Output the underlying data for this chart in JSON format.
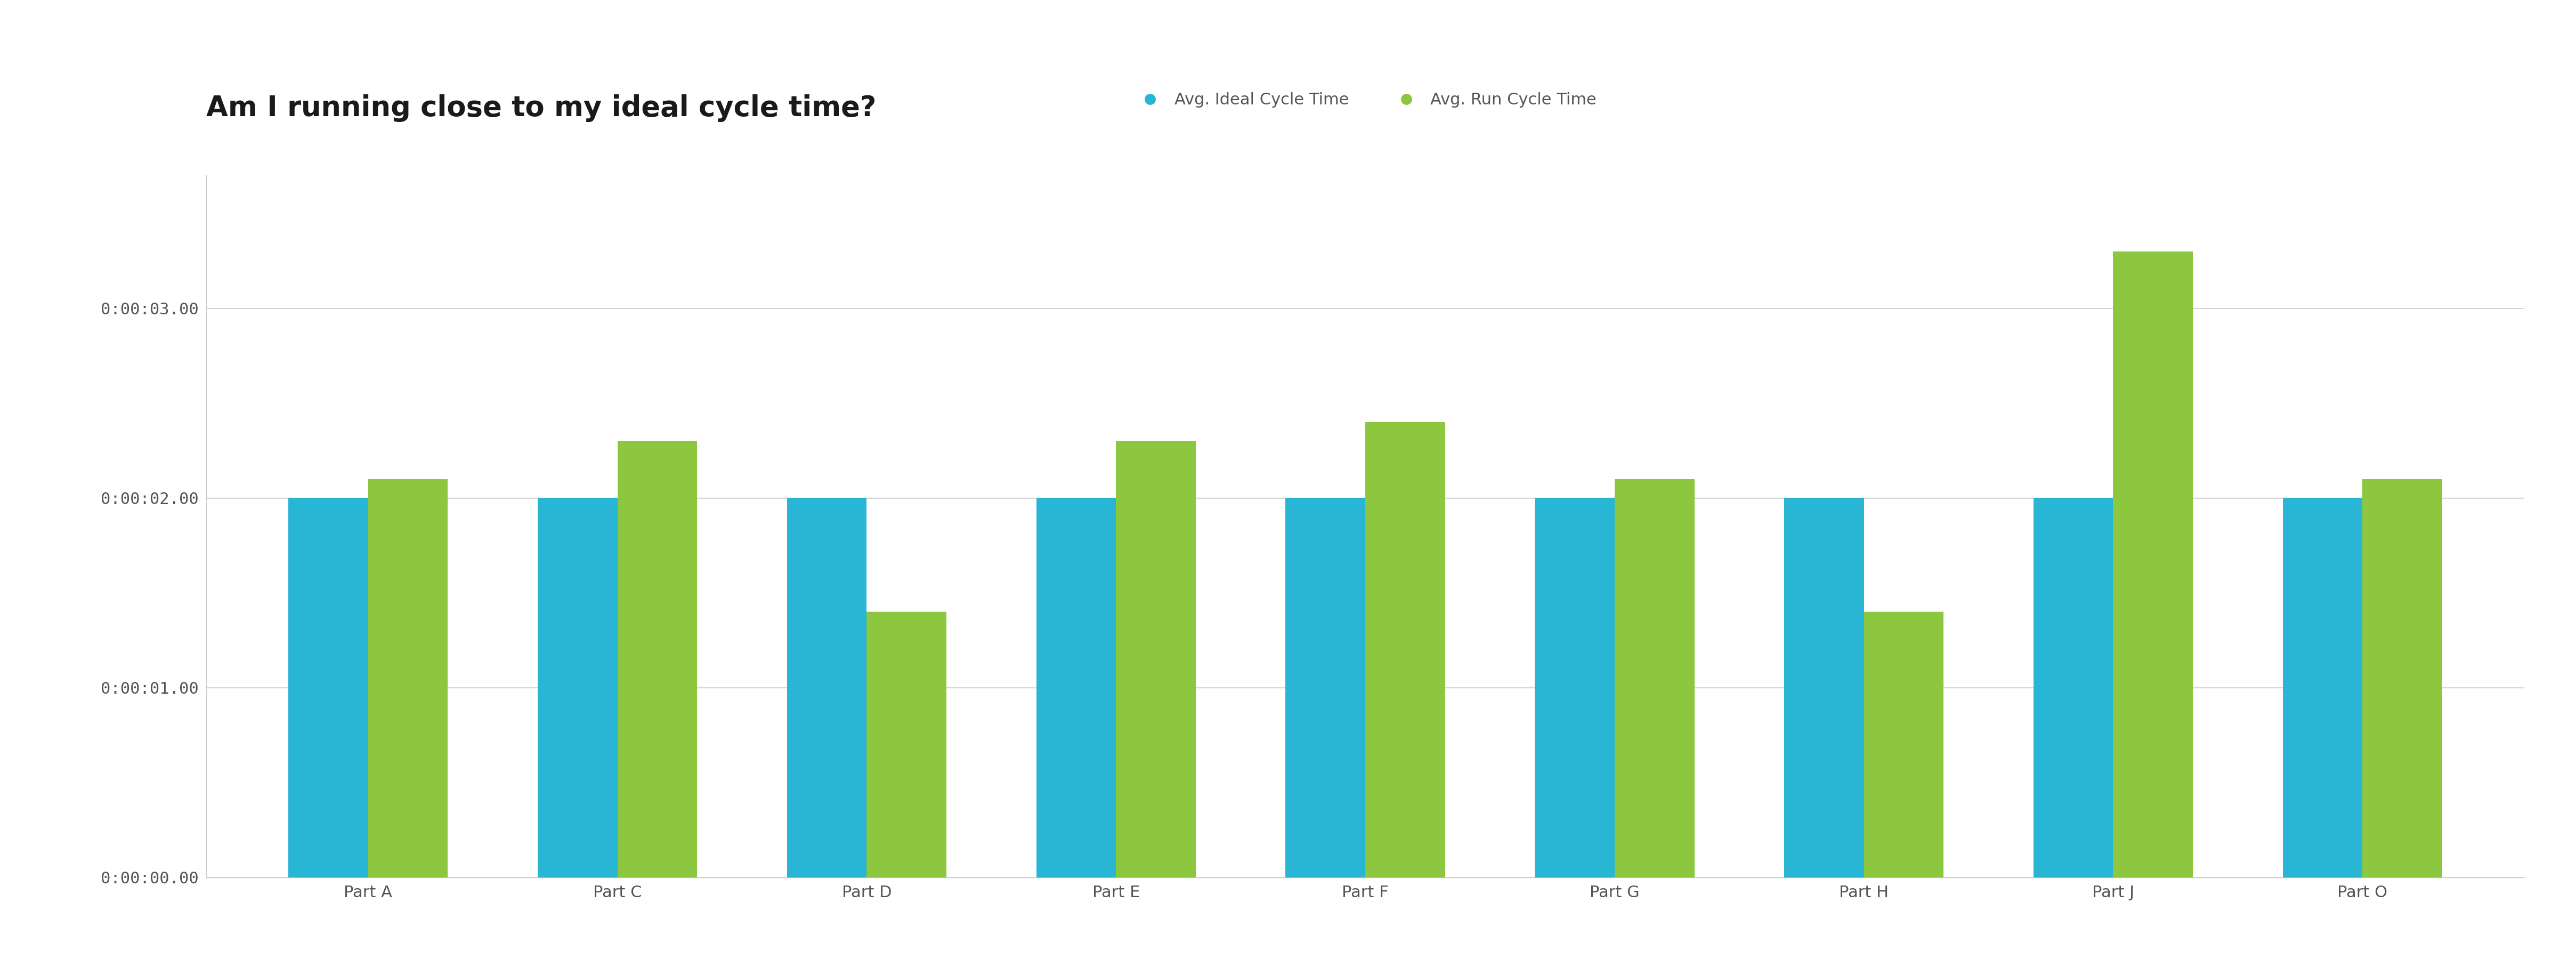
{
  "title": "Am I running close to my ideal cycle time?",
  "categories": [
    "Part A",
    "Part C",
    "Part D",
    "Part E",
    "Part F",
    "Part G",
    "Part H",
    "Part J",
    "Part O"
  ],
  "ideal_cycle_times": [
    2.0,
    2.0,
    2.0,
    2.0,
    2.0,
    2.0,
    2.0,
    2.0,
    2.0
  ],
  "run_cycle_times": [
    2.1,
    2.3,
    1.4,
    2.3,
    2.4,
    2.1,
    1.4,
    3.3,
    2.1
  ],
  "bar_color_ideal": "#29b6d5",
  "bar_color_run": "#8dc63f",
  "background_color": "#ffffff",
  "plot_area_color": "#ffffff",
  "grid_color": "#cccccc",
  "title_color": "#1a1a1a",
  "tick_label_color": "#555555",
  "legend_label_ideal": "Avg. Ideal Cycle Time",
  "legend_label_run": "Avg. Run Cycle Time",
  "ylim": [
    0,
    3.7
  ],
  "ytick_values": [
    0.0,
    1.0,
    2.0,
    3.0
  ],
  "title_fontsize": 38,
  "tick_fontsize": 22,
  "legend_fontsize": 22,
  "bar_width": 0.32
}
